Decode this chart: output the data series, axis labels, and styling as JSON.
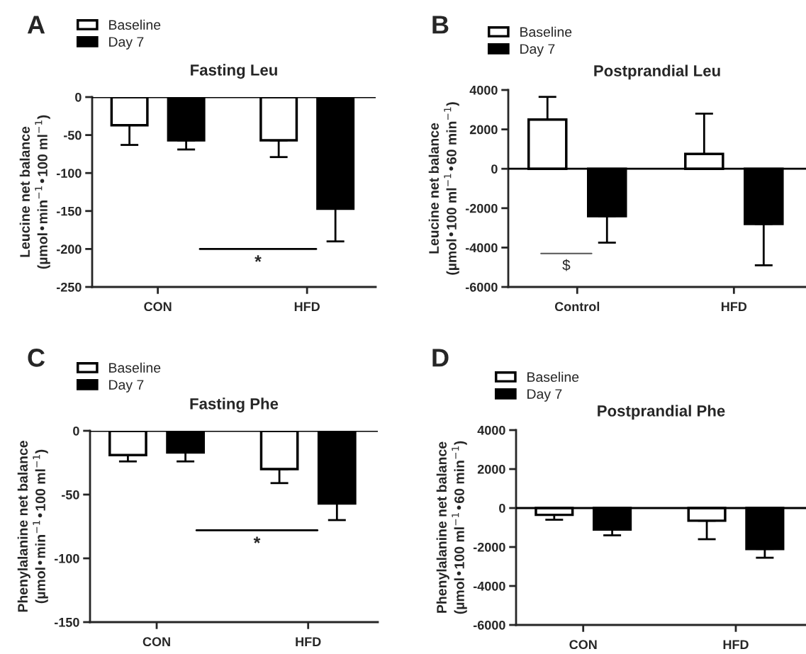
{
  "chart_data": [
    {
      "type": "bar",
      "title": "Fasting Leu",
      "ylabel": "Leucine net balance\n(µmol•min$^{−1}$•100 ml$^{−1}$)",
      "categories": [
        "CON",
        "HFD"
      ],
      "ylim": [
        -250,
        0
      ],
      "yticks": [
        0,
        -50,
        -100,
        -150,
        -200,
        -250
      ],
      "legend": "top left",
      "annotations": [
        "A",
        "*"
      ],
      "series": [
        {
          "name": "Baseline",
          "color": "#ffffff",
          "values": [
            -37,
            -57
          ],
          "errors": [
            [
              -63,
              -37
            ],
            [
              -79,
              -57
            ]
          ]
        },
        {
          "name": "Day 7",
          "color": "#000000",
          "values": [
            -57,
            -147
          ],
          "errors": [
            [
              -69,
              -57
            ],
            [
              -190,
              -147
            ]
          ]
        }
      ]
    },
    {
      "type": "bar",
      "title": "Postprandial Leu",
      "ylabel": "Leucine net balance\n(µmol•100 ml$^{−1}$•60 min$^{−1}$)",
      "categories": [
        "Control",
        "HFD"
      ],
      "ylim": [
        -6000,
        4000
      ],
      "yticks": [
        4000,
        2000,
        0,
        -2000,
        -4000,
        -6000
      ],
      "legend": "top left",
      "annotations": [
        "B",
        "$"
      ],
      "series": [
        {
          "name": "Baseline",
          "color": "#ffffff",
          "values": [
            2500,
            750
          ],
          "errors": [
            [
              2500,
              3650
            ],
            [
              750,
              2800
            ]
          ]
        },
        {
          "name": "Day 7",
          "color": "#000000",
          "values": [
            -2400,
            -2800
          ],
          "errors": [
            [
              -3750,
              -2400
            ],
            [
              -4900,
              -2800
            ]
          ]
        }
      ]
    },
    {
      "type": "bar",
      "title": "Fasting Phe",
      "ylabel": "Phenylalanine net balance\n(µmol•min$^{−1}$•100 ml$^{−1}$)",
      "categories": [
        "CON",
        "HFD"
      ],
      "ylim": [
        -150,
        0
      ],
      "yticks": [
        0,
        -50,
        -100,
        -150
      ],
      "legend": "top left",
      "annotations": [
        "C",
        "*"
      ],
      "series": [
        {
          "name": "Baseline",
          "color": "#ffffff",
          "values": [
            -19,
            -30
          ],
          "errors": [
            [
              -24,
              -19
            ],
            [
              -41,
              -30
            ]
          ]
        },
        {
          "name": "Day 7",
          "color": "#000000",
          "values": [
            -17,
            -57
          ],
          "errors": [
            [
              -24,
              -17
            ],
            [
              -70,
              -57
            ]
          ]
        }
      ]
    },
    {
      "type": "bar",
      "title": "Postprandial Phe",
      "ylabel": "Phenylalanine net balance\n(µmol•100 ml$^{−1}$•60 min$^{−1}$)",
      "categories": [
        "CON",
        "HFD"
      ],
      "ylim": [
        -6000,
        4000
      ],
      "yticks": [
        4000,
        2000,
        0,
        -2000,
        -4000,
        -6000
      ],
      "legend": "top left",
      "annotations": [
        "D"
      ],
      "series": [
        {
          "name": "Baseline",
          "color": "#ffffff",
          "values": [
            -350,
            -650
          ],
          "errors": [
            [
              -600,
              -350
            ],
            [
              -1600,
              -650
            ]
          ]
        },
        {
          "name": "Day 7",
          "color": "#000000",
          "values": [
            -1100,
            -2100
          ],
          "errors": [
            [
              -1400,
              -1100
            ],
            [
              -2550,
              -2100
            ]
          ]
        }
      ]
    }
  ]
}
